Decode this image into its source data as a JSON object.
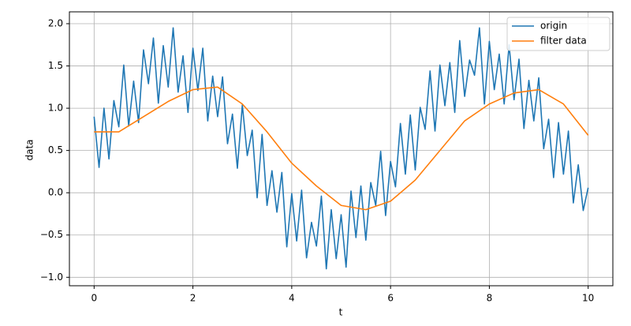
{
  "chart_data": {
    "type": "line",
    "xlabel": "t",
    "ylabel": "data",
    "xlim": [
      -0.5,
      10.5
    ],
    "ylim": [
      -1.1,
      2.14
    ],
    "xticks": [
      0,
      2,
      4,
      6,
      8,
      10
    ],
    "yticks": [
      {
        "value": -1,
        "label": "−1.0"
      },
      {
        "value": -0.5,
        "label": "−0.5"
      },
      {
        "value": 0,
        "label": "0.0"
      },
      {
        "value": 0.5,
        "label": "0.5"
      },
      {
        "value": 1,
        "label": "1.0"
      },
      {
        "value": 1.5,
        "label": "1.5"
      },
      {
        "value": 2,
        "label": "2.0"
      }
    ],
    "grid": true,
    "legend": "upper right",
    "series": [
      {
        "name": "origin",
        "color": "#1f77b4",
        "x": [
          0,
          0.1,
          0.2,
          0.3,
          0.4,
          0.5,
          0.6,
          0.7,
          0.8,
          0.9,
          1,
          1.1,
          1.2,
          1.3,
          1.4,
          1.5,
          1.6,
          1.7,
          1.8,
          1.9,
          2,
          2.1,
          2.2,
          2.3,
          2.4,
          2.5,
          2.6,
          2.7,
          2.8,
          2.9,
          3,
          3.1,
          3.2,
          3.3,
          3.4,
          3.5,
          3.6,
          3.7,
          3.8,
          3.9,
          4,
          4.1,
          4.2,
          4.3,
          4.4,
          4.5,
          4.6,
          4.7,
          4.8,
          4.9,
          5,
          5.1,
          5.2,
          5.3,
          5.4,
          5.5,
          5.6,
          5.7,
          5.8,
          5.9,
          6,
          6.1,
          6.2,
          6.3,
          6.4,
          6.5,
          6.6,
          6.7,
          6.8,
          6.9,
          7,
          7.1,
          7.2,
          7.3,
          7.4,
          7.5,
          7.6,
          7.7,
          7.8,
          7.9,
          8,
          8.1,
          8.2,
          8.3,
          8.4,
          8.5,
          8.6,
          8.7,
          8.8,
          8.9,
          9,
          9.1,
          9.2,
          9.3,
          9.4,
          9.5,
          9.6,
          9.7,
          9.8,
          9.9,
          10
        ],
        "values": [
          0.9,
          0.3,
          1.0,
          0.4,
          1.09,
          0.78,
          1.51,
          0.79,
          1.32,
          0.83,
          1.69,
          1.29,
          1.83,
          1.06,
          1.74,
          1.25,
          1.95,
          1.19,
          1.62,
          0.95,
          1.71,
          1.21,
          1.71,
          0.85,
          1.38,
          0.9,
          1.37,
          0.58,
          0.93,
          0.29,
          1.04,
          0.44,
          0.74,
          -0.06,
          0.69,
          -0.15,
          0.26,
          -0.23,
          0.24,
          -0.64,
          -0.01,
          -0.57,
          0.03,
          -0.77,
          -0.35,
          -0.63,
          -0.04,
          -0.9,
          -0.2,
          -0.78,
          -0.26,
          -0.88,
          0.02,
          -0.53,
          0.08,
          -0.56,
          0.12,
          -0.15,
          0.49,
          -0.27,
          0.37,
          0.07,
          0.82,
          0.22,
          0.92,
          0.27,
          1.01,
          0.75,
          1.44,
          0.73,
          1.51,
          1.03,
          1.54,
          0.95,
          1.8,
          1.14,
          1.57,
          1.39,
          1.95,
          1.05,
          1.79,
          1.22,
          1.64,
          1.05,
          1.75,
          1.1,
          1.58,
          0.76,
          1.33,
          0.85,
          1.36,
          0.52,
          0.87,
          0.18,
          0.83,
          0.22,
          0.73,
          -0.12,
          0.33,
          -0.21,
          0.06
        ]
      },
      {
        "name": "filter data",
        "color": "#ff7f0e",
        "x": [
          0,
          0.5,
          1,
          1.5,
          2,
          2.5,
          3,
          3.5,
          4,
          4.5,
          5,
          5.5,
          6,
          6.5,
          7,
          7.5,
          8,
          8.5,
          9,
          9.5,
          10
        ],
        "values": [
          0.72,
          0.72,
          0.9,
          1.08,
          1.22,
          1.25,
          1.05,
          0.72,
          0.35,
          0.08,
          -0.15,
          -0.2,
          -0.1,
          0.15,
          0.5,
          0.85,
          1.05,
          1.18,
          1.22,
          1.05,
          0.68
        ]
      }
    ]
  }
}
